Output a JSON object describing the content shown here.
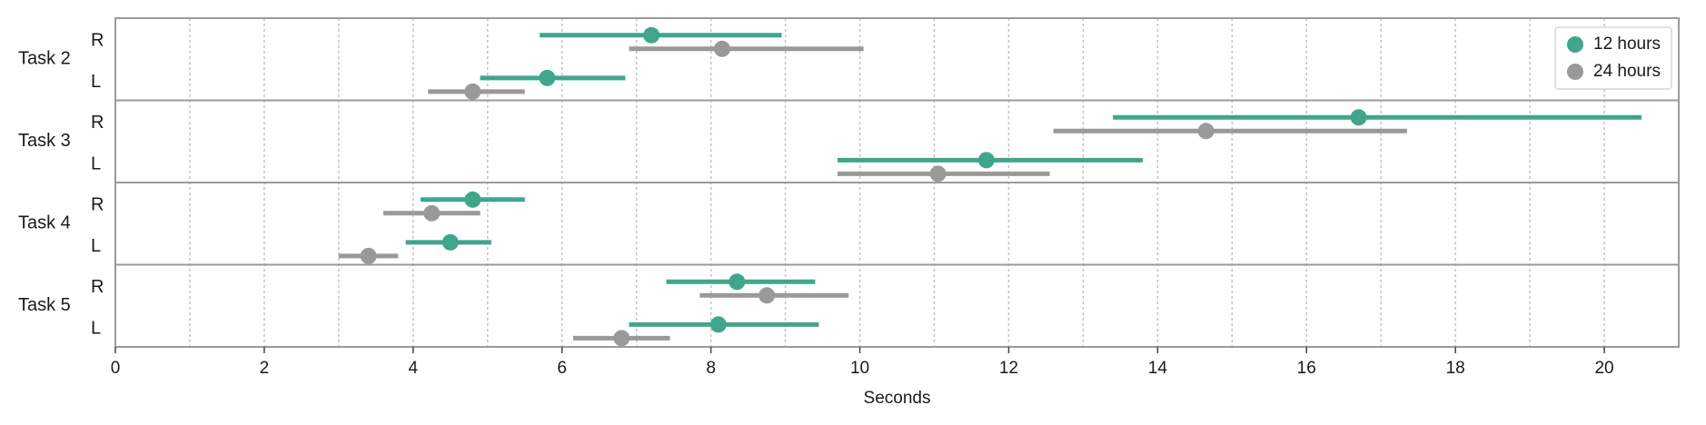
{
  "chart_data": {
    "type": "scatter",
    "subtype": "point-with-error-bars",
    "xlabel": "Seconds",
    "xlim": [
      0,
      21
    ],
    "x_ticks": [
      0,
      2,
      4,
      6,
      8,
      10,
      12,
      14,
      16,
      18,
      20
    ],
    "grid": "vertical dotted at every 1 second",
    "legend_position": "top-right",
    "series": [
      {
        "name": "12 hours",
        "color": "#3fa68c"
      },
      {
        "name": "24 hours",
        "color": "#999999"
      }
    ],
    "groups": [
      {
        "task": "Task 2",
        "rows": [
          {
            "side": "R",
            "points": [
              {
                "series": "12 hours",
                "mean": 7.2,
                "low": 5.7,
                "high": 8.95
              },
              {
                "series": "24 hours",
                "mean": 8.15,
                "low": 6.9,
                "high": 10.05
              }
            ]
          },
          {
            "side": "L",
            "points": [
              {
                "series": "12 hours",
                "mean": 5.8,
                "low": 4.9,
                "high": 6.85
              },
              {
                "series": "24 hours",
                "mean": 4.8,
                "low": 4.2,
                "high": 5.5
              }
            ]
          }
        ]
      },
      {
        "task": "Task 3",
        "rows": [
          {
            "side": "R",
            "points": [
              {
                "series": "12 hours",
                "mean": 16.7,
                "low": 13.4,
                "high": 20.5
              },
              {
                "series": "24 hours",
                "mean": 14.65,
                "low": 12.6,
                "high": 17.35
              }
            ]
          },
          {
            "side": "L",
            "points": [
              {
                "series": "12 hours",
                "mean": 11.7,
                "low": 9.7,
                "high": 13.8
              },
              {
                "series": "24 hours",
                "mean": 11.05,
                "low": 9.7,
                "high": 12.55
              }
            ]
          }
        ]
      },
      {
        "task": "Task 4",
        "rows": [
          {
            "side": "R",
            "points": [
              {
                "series": "12 hours",
                "mean": 4.8,
                "low": 4.1,
                "high": 5.5
              },
              {
                "series": "24 hours",
                "mean": 4.25,
                "low": 3.6,
                "high": 4.9
              }
            ]
          },
          {
            "side": "L",
            "points": [
              {
                "series": "12 hours",
                "mean": 4.5,
                "low": 3.9,
                "high": 5.05
              },
              {
                "series": "24 hours",
                "mean": 3.4,
                "low": 3.0,
                "high": 3.8
              }
            ]
          }
        ]
      },
      {
        "task": "Task 5",
        "rows": [
          {
            "side": "R",
            "points": [
              {
                "series": "12 hours",
                "mean": 8.35,
                "low": 7.4,
                "high": 9.4
              },
              {
                "series": "24 hours",
                "mean": 8.75,
                "low": 7.85,
                "high": 9.85
              }
            ]
          },
          {
            "side": "L",
            "points": [
              {
                "series": "12 hours",
                "mean": 8.1,
                "low": 6.9,
                "high": 9.45
              },
              {
                "series": "24 hours",
                "mean": 6.8,
                "low": 6.15,
                "high": 7.45
              }
            ]
          }
        ]
      }
    ]
  }
}
